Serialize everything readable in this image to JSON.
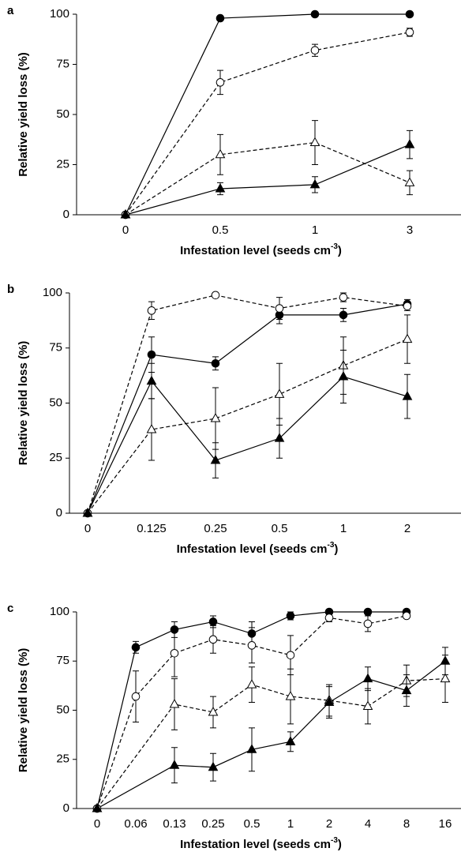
{
  "chart_data": [
    {
      "type": "line",
      "panel_label": "a",
      "ylabel": "Relative yield loss (%)",
      "xlabel": [
        "Infestation level (seeds cm",
        "-3",
        ")"
      ],
      "categories": [
        "0",
        "0.5",
        "1",
        "3"
      ],
      "ylim": [
        0,
        100
      ],
      "yticks": [
        0,
        25,
        50,
        75,
        100
      ],
      "series": [
        {
          "color": "#000000",
          "marker": "circle",
          "filled": true,
          "dashed": false,
          "values": [
            0,
            98,
            100,
            100
          ],
          "errors": [
            0,
            1,
            1,
            1
          ]
        },
        {
          "color": "#000000",
          "marker": "circle",
          "filled": false,
          "dashed": true,
          "values": [
            0,
            66,
            82,
            91
          ],
          "errors": [
            0,
            6,
            3,
            2
          ]
        },
        {
          "color": "#000000",
          "marker": "triangle",
          "filled": false,
          "dashed": true,
          "values": [
            0,
            30,
            36,
            16
          ],
          "errors": [
            0,
            10,
            11,
            6
          ]
        },
        {
          "color": "#000000",
          "marker": "triangle",
          "filled": true,
          "dashed": false,
          "values": [
            0,
            13,
            15,
            35
          ],
          "errors": [
            0,
            3,
            4,
            7
          ]
        }
      ]
    },
    {
      "type": "line",
      "panel_label": "b",
      "ylabel": "Relative yield loss (%)",
      "xlabel": [
        "Infestation level (seeds cm",
        "-3",
        ")"
      ],
      "categories": [
        "0",
        "0.125",
        "0.25",
        "0.5",
        "1",
        "2"
      ],
      "ylim": [
        0,
        100
      ],
      "yticks": [
        0,
        25,
        50,
        75,
        100
      ],
      "series": [
        {
          "color": "#000000",
          "marker": "circle",
          "filled": true,
          "dashed": false,
          "values": [
            0,
            72,
            68,
            90,
            90,
            95
          ],
          "errors": [
            0,
            8,
            3,
            4,
            3,
            2
          ]
        },
        {
          "color": "#000000",
          "marker": "circle",
          "filled": false,
          "dashed": true,
          "values": [
            0,
            92,
            99,
            93,
            98,
            94
          ],
          "errors": [
            0,
            4,
            1,
            5,
            2,
            2
          ]
        },
        {
          "color": "#000000",
          "marker": "triangle",
          "filled": false,
          "dashed": true,
          "values": [
            0,
            38,
            43,
            54,
            67,
            79
          ],
          "errors": [
            0,
            14,
            14,
            14,
            13,
            11
          ]
        },
        {
          "color": "#000000",
          "marker": "triangle",
          "filled": true,
          "dashed": false,
          "values": [
            0,
            60,
            24,
            34,
            62,
            53
          ],
          "errors": [
            0,
            8,
            8,
            9,
            12,
            10
          ]
        }
      ]
    },
    {
      "type": "line",
      "panel_label": "c",
      "ylabel": "Relative yield loss (%)",
      "xlabel": [
        "Infestation level (seeds cm",
        "-3",
        ")"
      ],
      "categories": [
        "0",
        "0.06",
        "0.13",
        "0.25",
        "0.5",
        "1",
        "2",
        "4",
        "8",
        "16"
      ],
      "ylim": [
        0,
        100
      ],
      "yticks": [
        0,
        25,
        50,
        75,
        100
      ],
      "series": [
        {
          "color": "#000000",
          "marker": "circle",
          "filled": true,
          "dashed": false,
          "values": [
            0,
            82,
            91,
            95,
            89,
            98,
            100,
            100,
            100,
            null
          ],
          "errors": [
            0,
            3,
            4,
            3,
            6,
            2,
            1,
            1,
            1,
            null
          ]
        },
        {
          "color": "#000000",
          "marker": "circle",
          "filled": false,
          "dashed": true,
          "values": [
            0,
            57,
            79,
            86,
            83,
            78,
            97,
            94,
            98,
            null
          ],
          "errors": [
            0,
            13,
            12,
            7,
            9,
            10,
            2,
            4,
            1,
            null
          ]
        },
        {
          "color": "#000000",
          "marker": "triangle",
          "filled": false,
          "dashed": true,
          "values": [
            0,
            null,
            53,
            49,
            63,
            57,
            55,
            52,
            65,
            66
          ],
          "errors": [
            0,
            null,
            13,
            8,
            9,
            14,
            8,
            9,
            8,
            12
          ]
        },
        {
          "color": "#000000",
          "marker": "triangle",
          "filled": true,
          "dashed": false,
          "values": [
            0,
            null,
            22,
            21,
            30,
            34,
            54,
            66,
            60,
            75
          ],
          "errors": [
            0,
            null,
            9,
            7,
            11,
            5,
            8,
            6,
            8,
            7
          ]
        }
      ]
    }
  ]
}
